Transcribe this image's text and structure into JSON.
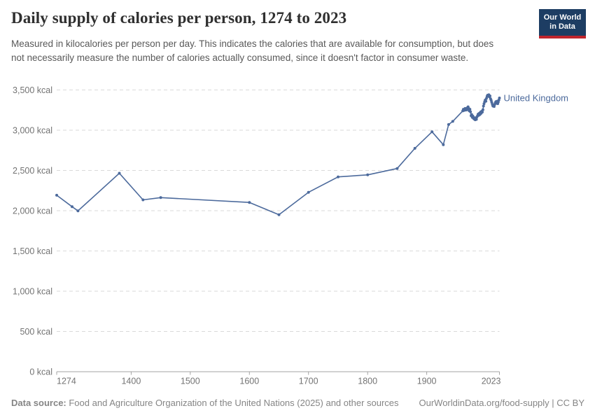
{
  "header": {
    "title": "Daily supply of calories per person, 1274 to 2023",
    "subtitle": "Measured in kilocalories per person per day. This indicates the calories that are available for consumption, but does not necessarily measure the number of calories actually consumed, since it doesn't factor in consumer waste.",
    "logo": {
      "line1": "Our World",
      "line2": "in Data",
      "bg_color": "#1d3d63",
      "bar_color": "#c0252d"
    }
  },
  "chart_data": {
    "type": "line",
    "title": "Daily supply of calories per person, 1274 to 2023",
    "xlabel": "",
    "ylabel": "",
    "unit": "kcal",
    "xlim": [
      1274,
      2023
    ],
    "ylim": [
      0,
      3500
    ],
    "grid": true,
    "legend_position": "end-of-line",
    "colors": {
      "line": "#4c6a9c",
      "gridline": "#dadada",
      "axis": "#a3a3a3",
      "tick_text": "#737373"
    },
    "yticks": [
      {
        "value": 0,
        "label": "0 kcal"
      },
      {
        "value": 500,
        "label": "500 kcal"
      },
      {
        "value": 1000,
        "label": "1,000 kcal"
      },
      {
        "value": 1500,
        "label": "1,500 kcal"
      },
      {
        "value": 2000,
        "label": "2,000 kcal"
      },
      {
        "value": 2500,
        "label": "2,500 kcal"
      },
      {
        "value": 3000,
        "label": "3,000 kcal"
      },
      {
        "value": 3500,
        "label": "3,500 kcal"
      }
    ],
    "xticks": [
      {
        "value": 1274,
        "label": "1274",
        "anchor": "start"
      },
      {
        "value": 1400,
        "label": "1400",
        "anchor": "middle"
      },
      {
        "value": 1500,
        "label": "1500",
        "anchor": "middle"
      },
      {
        "value": 1600,
        "label": "1600",
        "anchor": "middle"
      },
      {
        "value": 1700,
        "label": "1700",
        "anchor": "middle"
      },
      {
        "value": 1800,
        "label": "1800",
        "anchor": "middle"
      },
      {
        "value": 1900,
        "label": "1900",
        "anchor": "middle"
      },
      {
        "value": 2023,
        "label": "2023",
        "anchor": "end"
      }
    ],
    "series": [
      {
        "name": "United Kingdom",
        "color": "#4c6a9c",
        "points": [
          [
            1274,
            2192
          ],
          [
            1300,
            2050
          ],
          [
            1310,
            1998
          ],
          [
            1380,
            2465
          ],
          [
            1420,
            2135
          ],
          [
            1450,
            2163
          ],
          [
            1600,
            2103
          ],
          [
            1650,
            1950
          ],
          [
            1700,
            2229
          ],
          [
            1750,
            2420
          ],
          [
            1800,
            2445
          ],
          [
            1850,
            2524
          ],
          [
            1880,
            2775
          ],
          [
            1909,
            2980
          ],
          [
            1928,
            2820
          ],
          [
            1937,
            3070
          ],
          [
            1944,
            3110
          ],
          [
            1961,
            3240
          ],
          [
            1962,
            3260
          ],
          [
            1963,
            3245
          ],
          [
            1964,
            3255
          ],
          [
            1965,
            3270
          ],
          [
            1966,
            3250
          ],
          [
            1967,
            3265
          ],
          [
            1968,
            3255
          ],
          [
            1969,
            3280
          ],
          [
            1970,
            3290
          ],
          [
            1971,
            3270
          ],
          [
            1972,
            3240
          ],
          [
            1973,
            3260
          ],
          [
            1974,
            3230
          ],
          [
            1975,
            3180
          ],
          [
            1976,
            3195
          ],
          [
            1977,
            3160
          ],
          [
            1978,
            3175
          ],
          [
            1979,
            3150
          ],
          [
            1980,
            3140
          ],
          [
            1981,
            3155
          ],
          [
            1982,
            3130
          ],
          [
            1983,
            3145
          ],
          [
            1984,
            3135
          ],
          [
            1985,
            3165
          ],
          [
            1986,
            3180
          ],
          [
            1987,
            3200
          ],
          [
            1988,
            3185
          ],
          [
            1989,
            3210
          ],
          [
            1990,
            3195
          ],
          [
            1991,
            3225
          ],
          [
            1992,
            3210
          ],
          [
            1993,
            3235
          ],
          [
            1994,
            3225
          ],
          [
            1995,
            3255
          ],
          [
            1996,
            3300
          ],
          [
            1997,
            3330
          ],
          [
            1998,
            3355
          ],
          [
            1999,
            3375
          ],
          [
            2000,
            3360
          ],
          [
            2001,
            3395
          ],
          [
            2002,
            3420
          ],
          [
            2003,
            3435
          ],
          [
            2004,
            3425
          ],
          [
            2005,
            3440
          ],
          [
            2006,
            3415
          ],
          [
            2007,
            3425
          ],
          [
            2008,
            3390
          ],
          [
            2009,
            3370
          ],
          [
            2010,
            3345
          ],
          [
            2011,
            3320
          ],
          [
            2012,
            3300
          ],
          [
            2013,
            3315
          ],
          [
            2014,
            3295
          ],
          [
            2015,
            3320
          ],
          [
            2016,
            3340
          ],
          [
            2017,
            3355
          ],
          [
            2018,
            3335
          ],
          [
            2019,
            3360
          ],
          [
            2020,
            3330
          ],
          [
            2021,
            3350
          ],
          [
            2022,
            3375
          ],
          [
            2023,
            3400
          ]
        ]
      }
    ]
  },
  "footer": {
    "source_label": "Data source:",
    "source_text": " Food and Agriculture Organization of the United Nations (2025) and other sources",
    "license_text": "OurWorldinData.org/food-supply | CC BY"
  }
}
